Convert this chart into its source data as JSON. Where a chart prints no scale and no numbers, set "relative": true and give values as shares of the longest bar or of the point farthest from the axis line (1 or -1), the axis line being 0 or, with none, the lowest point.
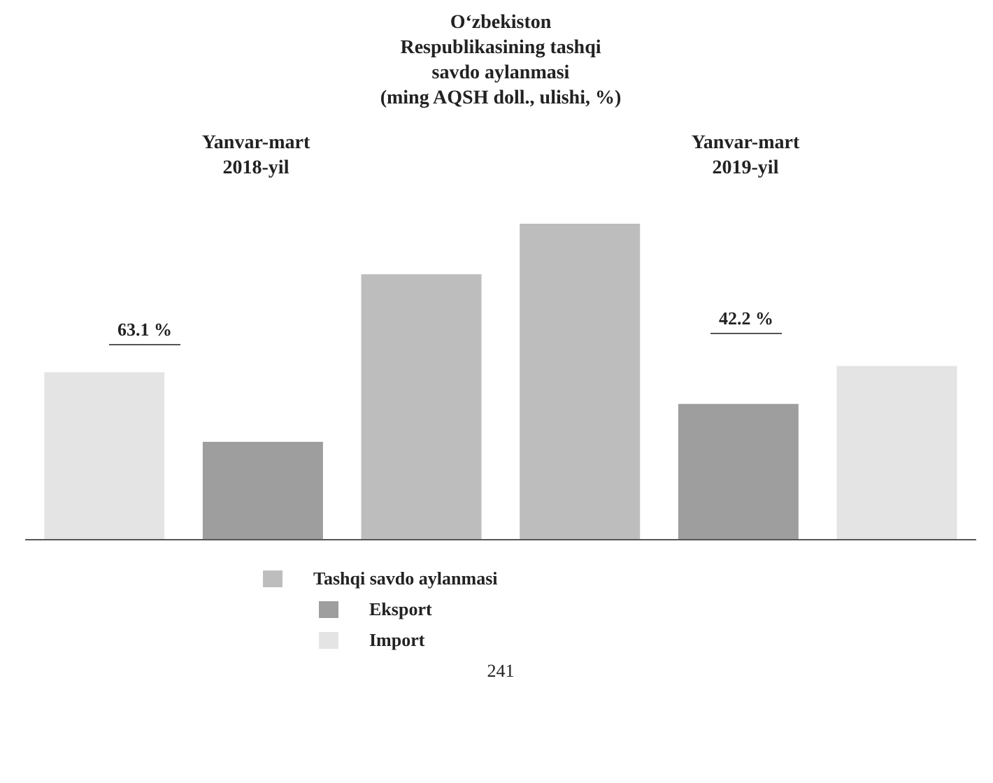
{
  "chart_data": {
    "type": "bar",
    "title": "O‘zbekiston\nRespublikasining tashqi\nsavdo aylanmasi\n(ming AQSH doll., ulishi, %)",
    "categories": [
      null,
      null,
      null,
      null,
      null,
      null
    ],
    "relative": true,
    "stacked": true,
    "series": [
      {
        "name": "Tashqi savdo aylanmasi",
        "color": "#bdbdbd",
        "values": [
          null,
          null,
          0.84,
          1,
          null,
          null
        ]
      },
      {
        "name": "Eksport",
        "color": "#9e9e9e",
        "values": [
          null,
          0.31,
          null,
          null,
          0.43,
          null
        ]
      },
      {
        "name": "Import",
        "color": "#e4e4e4",
        "values": [
          0.53,
          null,
          null,
          null,
          null,
          0.55
        ]
      }
    ],
    "annotations": [
      "Yanvar-mart\n2018-yil",
      "Yanvar-mart\n2019-yil",
      "63.1 %",
      "42.2 %",
      "241"
    ],
    "legend": "bottom"
  }
}
